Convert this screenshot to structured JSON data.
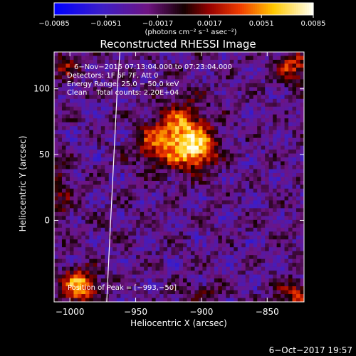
{
  "chart_data": {
    "type": "heatmap",
    "title": "Reconstructed RHESSI Image",
    "xlabel": "Heliocentric X (arcsec)",
    "ylabel": "Heliocentric Y (arcsec)",
    "xlim": [
      -1012,
      -822
    ],
    "ylim": [
      -62,
      128
    ],
    "x_ticks": [
      {
        "value": -1000,
        "label": "−1000"
      },
      {
        "value": -950,
        "label": "−950"
      },
      {
        "value": -900,
        "label": "−900"
      },
      {
        "value": -850,
        "label": "−850"
      }
    ],
    "y_ticks": [
      {
        "value": 0,
        "label": "0"
      },
      {
        "value": 50,
        "label": "50"
      },
      {
        "value": 100,
        "label": "100"
      }
    ],
    "colorbar": {
      "min": -0.0085,
      "max": 0.0085,
      "ticks": [
        {
          "value": -0.0085,
          "label": "−0.0085"
        },
        {
          "value": -0.0051,
          "label": "−0.0051"
        },
        {
          "value": -0.0017,
          "label": "−0.0017"
        },
        {
          "value": 0.0017,
          "label": "0.0017"
        },
        {
          "value": 0.0051,
          "label": "0.0051"
        },
        {
          "value": 0.0085,
          "label": "0.0085"
        }
      ],
      "units": "(photons cm⁻² s⁻¹ asec⁻²)"
    },
    "annotations": [
      "6−Nov−2015 07:13:04.000 to 07:23:04.000",
      "Detectors: 1F 6F 7F, Att 0",
      "Energy Range: 25.0 − 50.0 keV",
      "Clean    Total counts: 2.20E+04"
    ],
    "peak_label": "Position of Peak = [−993,−50]",
    "peak": [
      -993,
      -50
    ],
    "limb": [
      [
        -962,
        128
      ],
      [
        -964,
        100
      ],
      [
        -966,
        60
      ],
      [
        -968,
        20
      ],
      [
        -970,
        -20
      ],
      [
        -972,
        -62
      ]
    ],
    "sources": [
      {
        "x": -915,
        "y": 65,
        "sx": 14,
        "sy": 16,
        "amp": 0.0085
      },
      {
        "x": -902,
        "y": 52,
        "sx": 10,
        "sy": 10,
        "amp": 0.0055
      },
      {
        "x": -938,
        "y": 56,
        "sx": 10,
        "sy": 10,
        "amp": 0.004
      },
      {
        "x": -993,
        "y": -50,
        "sx": 10,
        "sy": 9,
        "amp": 0.0085
      },
      {
        "x": -830,
        "y": 116,
        "sx": 9,
        "sy": 9,
        "amp": 0.0055
      },
      {
        "x": -828,
        "y": -58,
        "sx": 11,
        "sy": 8,
        "amp": 0.005
      },
      {
        "x": -1005,
        "y": 118,
        "sx": 8,
        "sy": 8,
        "amp": 0.004
      },
      {
        "x": -1008,
        "y": 20,
        "sx": 6,
        "sy": 20,
        "amp": 0.003
      },
      {
        "x": -900,
        "y": -55,
        "sx": 12,
        "sy": 6,
        "amp": 0.0025
      }
    ],
    "background": -0.0028
  },
  "footer": {
    "timestamp": "6−Oct−2017 19:57"
  }
}
